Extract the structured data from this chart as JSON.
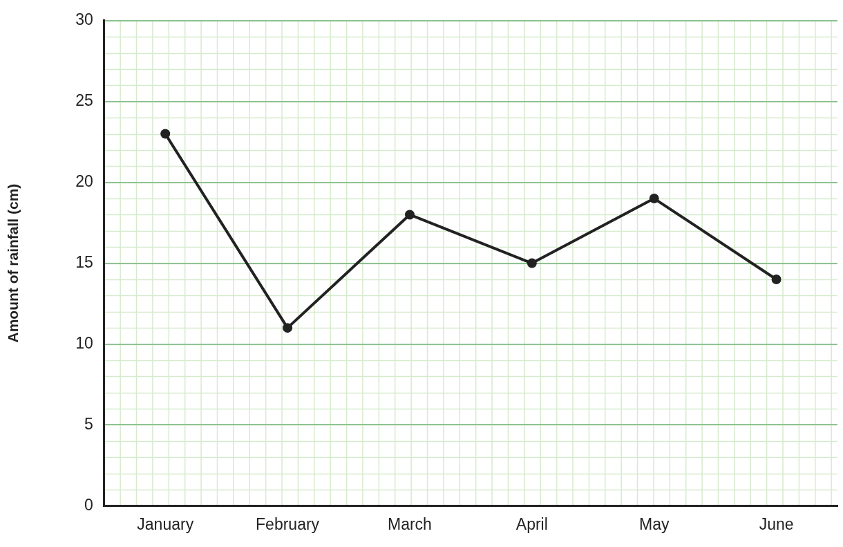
{
  "chart_data": {
    "type": "line",
    "ylabel": "Amount of rainfall (cm)",
    "categories": [
      "January",
      "February",
      "March",
      "April",
      "May",
      "June"
    ],
    "series": [
      {
        "color": "#222222",
        "values": [
          23,
          11,
          18,
          15,
          19,
          14
        ]
      }
    ],
    "ylim": [
      0,
      30
    ],
    "yticks": [
      0,
      5,
      10,
      15,
      20,
      25,
      30
    ],
    "grid": true,
    "legend": false,
    "marker": "circle",
    "line_style": "solid"
  }
}
